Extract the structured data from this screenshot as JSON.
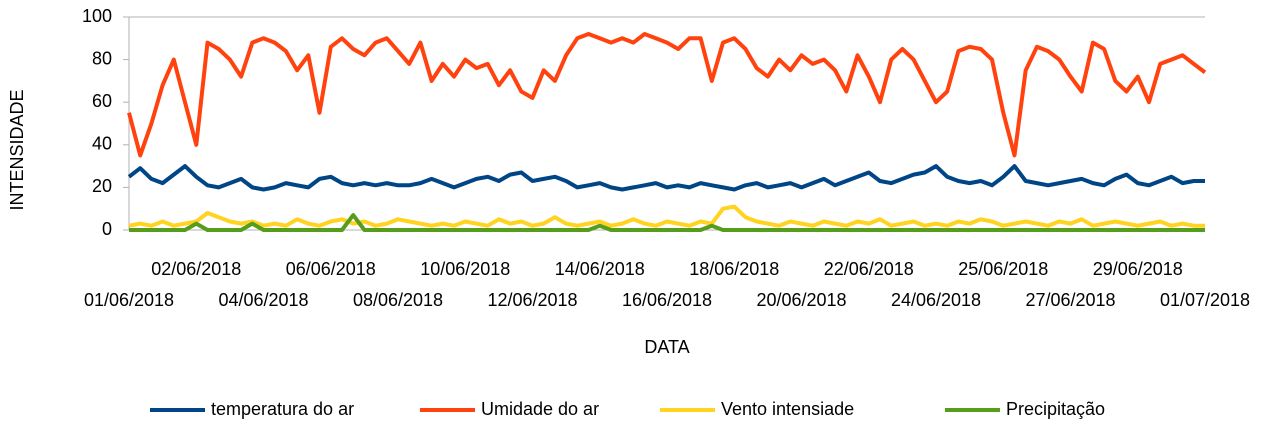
{
  "chart_data": {
    "type": "line",
    "y_label": "INTENSIDADE",
    "x_label": "DATA",
    "categories": [
      "01/06/2018",
      null,
      null,
      null,
      null,
      null,
      "02/06/2018",
      null,
      null,
      null,
      null,
      null,
      "04/06/2018",
      null,
      null,
      null,
      null,
      null,
      "06/06/2018",
      null,
      null,
      null,
      null,
      null,
      "08/06/2018",
      null,
      null,
      null,
      null,
      null,
      "10/06/2018",
      null,
      null,
      null,
      null,
      null,
      "12/06/2018",
      null,
      null,
      null,
      null,
      null,
      "14/06/2018",
      null,
      null,
      null,
      null,
      null,
      "16/06/2018",
      null,
      null,
      null,
      null,
      null,
      "18/06/2018",
      null,
      null,
      null,
      null,
      null,
      "20/06/2018",
      null,
      null,
      null,
      null,
      null,
      "22/06/2018",
      null,
      null,
      null,
      null,
      null,
      "24/06/2018",
      null,
      null,
      null,
      null,
      null,
      "25/06/2018",
      null,
      null,
      null,
      null,
      null,
      "27/06/2018",
      null,
      null,
      null,
      null,
      null,
      "29/06/2018",
      null,
      null,
      null,
      null,
      null,
      "01/07/2018"
    ],
    "series": [
      {
        "name": "temperatura do ar",
        "color": "#004586",
        "values": [
          25,
          29,
          24,
          22,
          26,
          30,
          25,
          21,
          20,
          22,
          24,
          20,
          19,
          20,
          22,
          21,
          20,
          24,
          25,
          22,
          21,
          22,
          21,
          22,
          21,
          21,
          22,
          24,
          22,
          20,
          22,
          24,
          25,
          23,
          26,
          27,
          23,
          24,
          25,
          23,
          20,
          21,
          22,
          20,
          19,
          20,
          21,
          22,
          20,
          21,
          20,
          22,
          21,
          20,
          19,
          21,
          22,
          20,
          21,
          22,
          20,
          22,
          24,
          21,
          23,
          25,
          27,
          23,
          22,
          24,
          26,
          27,
          30,
          25,
          23,
          22,
          23,
          21,
          25,
          30,
          23,
          22,
          21,
          22,
          23,
          24,
          22,
          21,
          24,
          26,
          22,
          21,
          23,
          25,
          22,
          23,
          23
        ]
      },
      {
        "name": "Umidade do ar",
        "color": "#ff420e",
        "values": [
          55,
          35,
          50,
          68,
          80,
          60,
          40,
          88,
          85,
          80,
          72,
          88,
          90,
          88,
          84,
          75,
          82,
          55,
          86,
          90,
          85,
          82,
          88,
          90,
          84,
          78,
          88,
          70,
          78,
          72,
          80,
          76,
          78,
          68,
          75,
          65,
          62,
          75,
          70,
          82,
          90,
          92,
          90,
          88,
          90,
          88,
          92,
          90,
          88,
          85,
          90,
          90,
          70,
          88,
          90,
          85,
          76,
          72,
          80,
          75,
          82,
          78,
          80,
          75,
          65,
          82,
          72,
          60,
          80,
          85,
          80,
          70,
          60,
          65,
          84,
          86,
          85,
          80,
          55,
          35,
          75,
          86,
          84,
          80,
          72,
          65,
          88,
          85,
          70,
          65,
          72,
          60,
          78,
          80,
          82,
          78,
          74
        ]
      },
      {
        "name": "Vento intensiade",
        "color": "#ffd320",
        "values": [
          2,
          3,
          2,
          4,
          2,
          3,
          4,
          8,
          6,
          4,
          3,
          4,
          2,
          3,
          2,
          5,
          3,
          2,
          4,
          5,
          3,
          4,
          2,
          3,
          5,
          4,
          3,
          2,
          3,
          2,
          4,
          3,
          2,
          5,
          3,
          4,
          2,
          3,
          6,
          3,
          2,
          3,
          4,
          2,
          3,
          5,
          3,
          2,
          4,
          3,
          2,
          4,
          3,
          10,
          11,
          6,
          4,
          3,
          2,
          4,
          3,
          2,
          4,
          3,
          2,
          4,
          3,
          5,
          2,
          3,
          4,
          2,
          3,
          2,
          4,
          3,
          5,
          4,
          2,
          3,
          4,
          3,
          2,
          4,
          3,
          5,
          2,
          3,
          4,
          3,
          2,
          3,
          4,
          2,
          3,
          2,
          2
        ]
      },
      {
        "name": "Precipitação",
        "color": "#579d1c",
        "values": [
          0,
          0,
          0,
          0,
          0,
          0,
          3,
          0,
          0,
          0,
          0,
          3,
          0,
          0,
          0,
          0,
          0,
          0,
          0,
          0,
          7,
          0,
          0,
          0,
          0,
          0,
          0,
          0,
          0,
          0,
          0,
          0,
          0,
          0,
          0,
          0,
          0,
          0,
          0,
          0,
          0,
          0,
          2,
          0,
          0,
          0,
          0,
          0,
          0,
          0,
          0,
          0,
          2,
          0,
          0,
          0,
          0,
          0,
          0,
          0,
          0,
          0,
          0,
          0,
          0,
          0,
          0,
          0,
          0,
          0,
          0,
          0,
          0,
          0,
          0,
          0,
          0,
          0,
          0,
          0,
          0,
          0,
          0,
          0,
          0,
          0,
          0,
          0,
          0,
          0,
          0,
          0,
          0,
          0,
          0,
          0,
          0
        ]
      }
    ],
    "ylim": [
      0,
      100
    ],
    "yticks": [
      0,
      20,
      40,
      60,
      80,
      100
    ],
    "grid": false,
    "legend": "bottom"
  }
}
